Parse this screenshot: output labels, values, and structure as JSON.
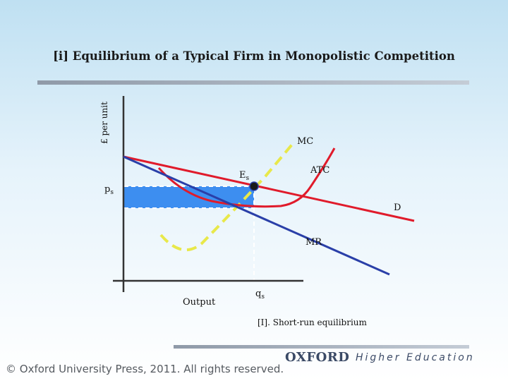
{
  "title": "[i] Equilibrium of a Typical Firm in Monopolistic Competition",
  "axis": {
    "y_label": "£ per unit",
    "x_label": "Output",
    "price_label_main": "p",
    "price_label_sub": "s",
    "quantity_label_main": "q",
    "quantity_label_sub": "s"
  },
  "curves": {
    "mc": "MC",
    "atc": "ATC",
    "demand": "D",
    "mr": "MR",
    "equilibrium_main": "E",
    "equilibrium_sub": "s"
  },
  "caption": "[I]. Short-run equilibrium",
  "footer": {
    "copyright": "© Oxford University Press, 2011. All rights reserved.",
    "logo_main": "OXFORD",
    "logo_sub": "Higher Education"
  },
  "colors": {
    "demand": "#e01b2b",
    "mr": "#2a3fa8",
    "atc": "#e01b2b",
    "mc": "#e8e84a",
    "profit_area": "#3d8ef0",
    "axis": "#333333"
  }
}
